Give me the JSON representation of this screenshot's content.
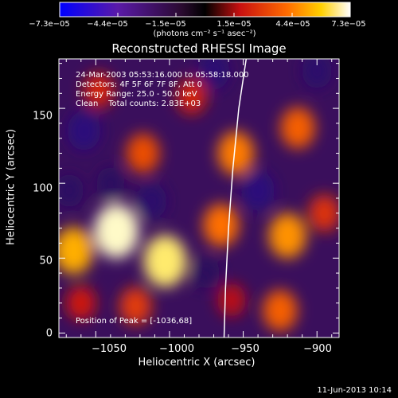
{
  "chart_data": {
    "type": "heatmap",
    "title": "Reconstructed RHESSI Image",
    "xlabel": "Heliocentric X (arcsec)",
    "ylabel": "Heliocentric Y (arcsec)",
    "xlim": [
      -1075,
      -885
    ],
    "ylim": [
      -3,
      183
    ],
    "x_ticks": [
      -1050,
      -1000,
      -950,
      -900
    ],
    "x_tick_labels": [
      "−1050",
      "−1000",
      "−950",
      "−900"
    ],
    "y_ticks": [
      0,
      50,
      100,
      150
    ],
    "y_tick_labels": [
      "0",
      "50",
      "100",
      "150"
    ],
    "colorbar": {
      "range": [
        -7.3e-05,
        7.3e-05
      ],
      "tick_labels": [
        "−7.3e−05",
        "−4.4e−05",
        "−1.5e−05",
        "1.5e−05",
        "4.4e−05",
        "7.3e−05"
      ],
      "unit_label": "(photons cm⁻² s⁻¹ asec⁻²)",
      "colormap": "blue-purple-black-red-orange-yellow-white"
    },
    "annotations": [
      "24-Mar-2003 05:53:16.000 to 05:58:18.000",
      "Detectors: 4F 5F 6F 7F 8F, Att 0",
      "Energy Range: 25.0 - 50.0 keV",
      "Clean    Total counts: 2.83E+03"
    ],
    "peak_label": "Position of Peak = [-1036,68]",
    "peak": {
      "x": -1036,
      "y": 68
    },
    "limb_curve": [
      [
        -948,
        183
      ],
      [
        -953,
        150
      ],
      [
        -957,
        110
      ],
      [
        -960,
        70
      ],
      [
        -962,
        30
      ],
      [
        -963,
        -3
      ]
    ],
    "sources": [
      {
        "x": -1003,
        "y": 48,
        "value": 6.8e-05
      },
      {
        "x": -1036,
        "y": 68,
        "value": 7.3e-05
      },
      {
        "x": -1065,
        "y": 55,
        "value": 5.5e-05
      },
      {
        "x": -955,
        "y": 120,
        "value": 4.6e-05
      },
      {
        "x": -920,
        "y": 65,
        "value": 5e-05
      },
      {
        "x": -965,
        "y": 72,
        "value": 4.4e-05
      },
      {
        "x": -913,
        "y": 137,
        "value": 4e-05
      },
      {
        "x": -1018,
        "y": 120,
        "value": 3.6e-05
      },
      {
        "x": -985,
        "y": 158,
        "value": 2.6e-05
      },
      {
        "x": -1048,
        "y": 162,
        "value": 2.6e-05
      },
      {
        "x": -925,
        "y": 15,
        "value": 4e-05
      },
      {
        "x": -1023,
        "y": 18,
        "value": 3.2e-05
      },
      {
        "x": -1060,
        "y": 20,
        "value": 2.4e-05
      },
      {
        "x": -958,
        "y": 22,
        "value": 2e-05
      },
      {
        "x": -895,
        "y": 80,
        "value": 3e-05
      },
      {
        "x": -1040,
        "y": 100,
        "value": -1.8e-05
      },
      {
        "x": -940,
        "y": 95,
        "value": -3.5e-05
      },
      {
        "x": -1058,
        "y": 135,
        "value": -3.5e-05
      },
      {
        "x": -1012,
        "y": 88,
        "value": -2.5e-05
      },
      {
        "x": -970,
        "y": 175,
        "value": -3e-05
      },
      {
        "x": -900,
        "y": 175,
        "value": -2.5e-05
      },
      {
        "x": -1068,
        "y": 95,
        "value": -2e-05
      },
      {
        "x": -975,
        "y": 40,
        "value": -1.5e-05
      }
    ]
  },
  "footer_date": "11-Jun-2013 10:14"
}
